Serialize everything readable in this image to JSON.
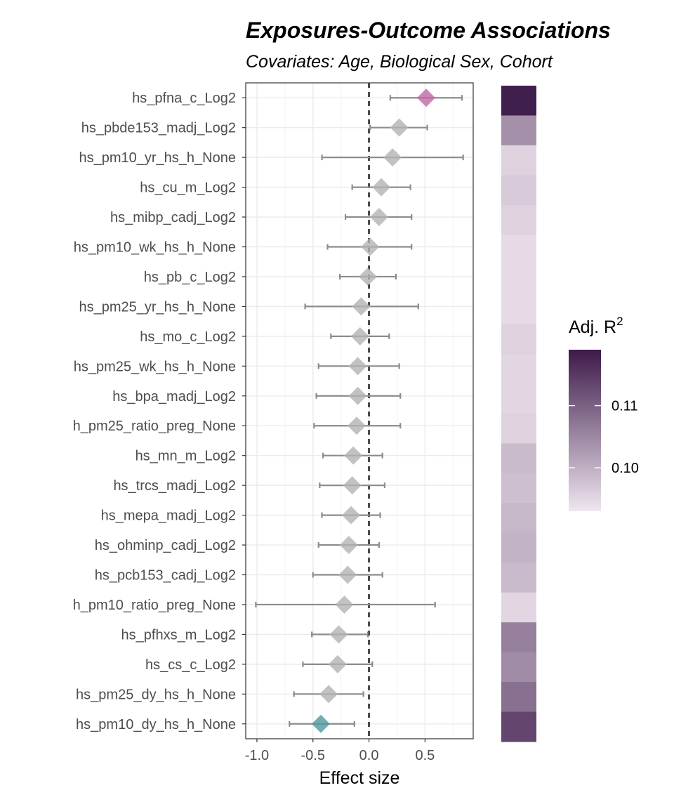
{
  "chart_data": {
    "type": "forest",
    "title": "Exposures-Outcome Associations",
    "subtitle": "Covariates: Age, Biological Sex,  Cohort",
    "xlabel": "Effect size",
    "xlim": [
      -1.1,
      0.93
    ],
    "xticks": [
      -1.0,
      -0.5,
      0.0,
      0.5
    ],
    "xtick_labels": [
      "-1.0",
      "-0.5",
      "0.0",
      "0.5"
    ],
    "reference_line": 0,
    "grid": true,
    "legend": {
      "title": "Adj. R",
      "title_superscript": "2",
      "position": "right",
      "min": 0.093,
      "max": 0.119,
      "ticks": [
        0.11,
        0.1
      ],
      "tick_labels": [
        "0.11",
        "0.10"
      ],
      "color_low": "#efe6ef",
      "color_high": "#3d1a4a"
    },
    "colors": {
      "positive_significant": "#c267a2",
      "negative_significant": "#4f9a9d",
      "not_significant": "#b3b3b3",
      "errorbar": "#8c8c8c"
    },
    "rows": [
      {
        "label": "hs_pfna_c_Log2",
        "estimate": 0.51,
        "lower": 0.19,
        "upper": 0.83,
        "adj_r2": 0.1185,
        "significance": "positive"
      },
      {
        "label": "hs_pbde153_madj_Log2",
        "estimate": 0.27,
        "lower": 0.01,
        "upper": 0.52,
        "adj_r2": 0.104,
        "significance": "none"
      },
      {
        "label": "hs_pm10_yr_hs_h_None",
        "estimate": 0.21,
        "lower": -0.42,
        "upper": 0.84,
        "adj_r2": 0.0955,
        "significance": "none"
      },
      {
        "label": "hs_cu_m_Log2",
        "estimate": 0.11,
        "lower": -0.15,
        "upper": 0.37,
        "adj_r2": 0.0965,
        "significance": "none"
      },
      {
        "label": "hs_mibp_cadj_Log2",
        "estimate": 0.09,
        "lower": -0.21,
        "upper": 0.38,
        "adj_r2": 0.0955,
        "significance": "none"
      },
      {
        "label": "hs_pm10_wk_hs_h_None",
        "estimate": 0.01,
        "lower": -0.37,
        "upper": 0.38,
        "adj_r2": 0.0945,
        "significance": "none"
      },
      {
        "label": "hs_pb_c_Log2",
        "estimate": -0.01,
        "lower": -0.26,
        "upper": 0.24,
        "adj_r2": 0.0945,
        "significance": "none"
      },
      {
        "label": "hs_pm25_yr_hs_h_None",
        "estimate": -0.07,
        "lower": -0.57,
        "upper": 0.44,
        "adj_r2": 0.0945,
        "significance": "none"
      },
      {
        "label": "hs_mo_c_Log2",
        "estimate": -0.08,
        "lower": -0.34,
        "upper": 0.18,
        "adj_r2": 0.0955,
        "significance": "none"
      },
      {
        "label": "hs_pm25_wk_hs_h_None",
        "estimate": -0.1,
        "lower": -0.45,
        "upper": 0.27,
        "adj_r2": 0.095,
        "significance": "none"
      },
      {
        "label": "hs_bpa_madj_Log2",
        "estimate": -0.1,
        "lower": -0.47,
        "upper": 0.28,
        "adj_r2": 0.095,
        "significance": "none"
      },
      {
        "label": "h_pm25_ratio_preg_None",
        "estimate": -0.11,
        "lower": -0.49,
        "upper": 0.28,
        "adj_r2": 0.0955,
        "significance": "none"
      },
      {
        "label": "hs_mn_m_Log2",
        "estimate": -0.14,
        "lower": -0.41,
        "upper": 0.12,
        "adj_r2": 0.0985,
        "significance": "none"
      },
      {
        "label": "hs_trcs_madj_Log2",
        "estimate": -0.15,
        "lower": -0.44,
        "upper": 0.14,
        "adj_r2": 0.098,
        "significance": "none"
      },
      {
        "label": "hs_mepa_madj_Log2",
        "estimate": -0.16,
        "lower": -0.42,
        "upper": 0.1,
        "adj_r2": 0.099,
        "significance": "none"
      },
      {
        "label": "hs_ohminp_cadj_Log2",
        "estimate": -0.18,
        "lower": -0.45,
        "upper": 0.09,
        "adj_r2": 0.0995,
        "significance": "none"
      },
      {
        "label": "hs_pcb153_cadj_Log2",
        "estimate": -0.19,
        "lower": -0.5,
        "upper": 0.12,
        "adj_r2": 0.0985,
        "significance": "none"
      },
      {
        "label": "h_pm10_ratio_preg_None",
        "estimate": -0.22,
        "lower": -1.01,
        "upper": 0.59,
        "adj_r2": 0.095,
        "significance": "none"
      },
      {
        "label": "hs_pfhxs_m_Log2",
        "estimate": -0.27,
        "lower": -0.51,
        "upper": -0.01,
        "adj_r2": 0.106,
        "significance": "none"
      },
      {
        "label": "hs_cs_c_Log2",
        "estimate": -0.28,
        "lower": -0.59,
        "upper": 0.03,
        "adj_r2": 0.1045,
        "significance": "none"
      },
      {
        "label": "hs_pm25_dy_hs_h_None",
        "estimate": -0.36,
        "lower": -0.67,
        "upper": -0.05,
        "adj_r2": 0.108,
        "significance": "none"
      },
      {
        "label": "hs_pm10_dy_hs_h_None",
        "estimate": -0.43,
        "lower": -0.71,
        "upper": -0.13,
        "adj_r2": 0.1135,
        "significance": "negative"
      }
    ]
  }
}
